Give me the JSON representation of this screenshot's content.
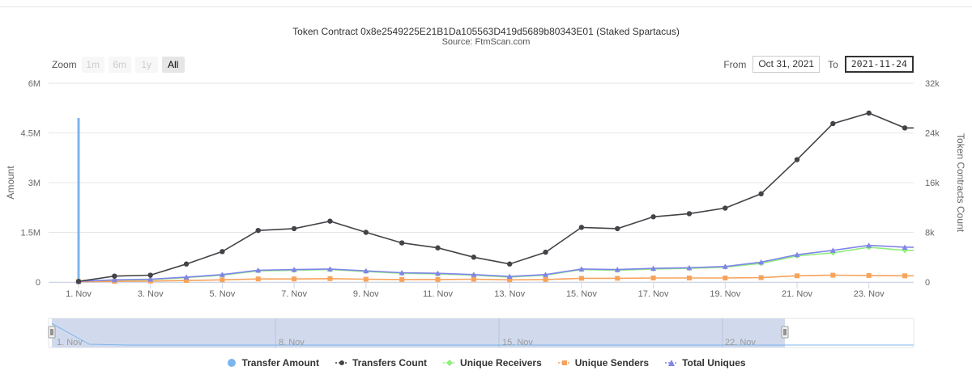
{
  "title": "Token Contract 0x8e2549225E21B1Da105563D419d5689b80343E01 (Staked Spartacus)",
  "subtitle": "Source: FtmScan.com",
  "zoom": {
    "label": "Zoom",
    "buttons": [
      {
        "label": "1m",
        "active": false
      },
      {
        "label": "6m",
        "active": false
      },
      {
        "label": "1y",
        "active": false
      },
      {
        "label": "All",
        "active": true
      }
    ]
  },
  "range": {
    "from_label": "From",
    "from_value": "Oct 31, 2021",
    "to_label": "To",
    "to_value": "2021-11-24"
  },
  "colors": {
    "transfer_amount": "#7cb5ec",
    "transfers_count": "#434348",
    "unique_receivers": "#90ed7d",
    "unique_senders": "#f7a35c",
    "total_uniques": "#8085e9",
    "navigator_mask": "#ccd6eb",
    "grid": "#e6e6e6"
  },
  "chart_data": {
    "type": "line",
    "x_ticks": [
      "1. Nov",
      "3. Nov",
      "5. Nov",
      "7. Nov",
      "9. Nov",
      "11. Nov",
      "13. Nov",
      "15. Nov",
      "17. Nov",
      "19. Nov",
      "21. Nov",
      "23. Nov"
    ],
    "x": [
      "2021-11-01",
      "2021-11-02",
      "2021-11-03",
      "2021-11-04",
      "2021-11-05",
      "2021-11-06",
      "2021-11-07",
      "2021-11-08",
      "2021-11-09",
      "2021-11-10",
      "2021-11-11",
      "2021-11-12",
      "2021-11-13",
      "2021-11-14",
      "2021-11-15",
      "2021-11-16",
      "2021-11-17",
      "2021-11-18",
      "2021-11-19",
      "2021-11-20",
      "2021-11-21",
      "2021-11-22",
      "2021-11-23",
      "2021-11-24"
    ],
    "y_left": {
      "label": "Amount",
      "ticks": [
        "0",
        "1.5M",
        "3M",
        "4.5M",
        "6M"
      ],
      "range": [
        0,
        6000000
      ]
    },
    "y_right": {
      "label": "Token Contracts Count",
      "ticks": [
        "0",
        "8k",
        "16k",
        "24k",
        "32k"
      ],
      "range": [
        0,
        32000
      ]
    },
    "series": [
      {
        "name": "Transfer Amount",
        "axis": "left",
        "kind": "column",
        "values": [
          4950000,
          0,
          0,
          0,
          0,
          0,
          0,
          0,
          0,
          0,
          0,
          0,
          0,
          0,
          0,
          0,
          0,
          0,
          0,
          0,
          0,
          0,
          0,
          0
        ]
      },
      {
        "name": "Transfers Count",
        "axis": "right",
        "marker": "circle",
        "values": [
          100,
          950,
          1100,
          2900,
          4900,
          8300,
          8600,
          9800,
          8000,
          6300,
          5500,
          4000,
          2900,
          4800,
          8800,
          8600,
          10500,
          11000,
          11900,
          14200,
          19700,
          25500,
          27200,
          24800
        ]
      },
      {
        "name": "Unique Receivers",
        "axis": "right",
        "marker": "diamond",
        "values": [
          100,
          300,
          400,
          700,
          1100,
          1800,
          1900,
          2000,
          1700,
          1400,
          1300,
          1100,
          800,
          1100,
          2000,
          1900,
          2100,
          2200,
          2400,
          3000,
          4200,
          4700,
          5600,
          5100
        ]
      },
      {
        "name": "Unique Senders",
        "axis": "right",
        "marker": "square",
        "values": [
          50,
          100,
          150,
          250,
          350,
          500,
          500,
          550,
          450,
          400,
          400,
          450,
          350,
          400,
          600,
          600,
          650,
          650,
          650,
          700,
          1000,
          1100,
          1050,
          1000
        ]
      },
      {
        "name": "Total Uniques",
        "axis": "right",
        "marker": "triangle",
        "values": [
          120,
          350,
          450,
          800,
          1200,
          1900,
          2000,
          2100,
          1800,
          1500,
          1400,
          1200,
          900,
          1200,
          2100,
          2000,
          2200,
          2300,
          2500,
          3200,
          4400,
          5100,
          5900,
          5600
        ]
      }
    ],
    "navigator": {
      "ticks": [
        "1. Nov",
        "8. Nov",
        "15. Nov",
        "22. Nov"
      ]
    },
    "legend_position": "bottom-center"
  }
}
